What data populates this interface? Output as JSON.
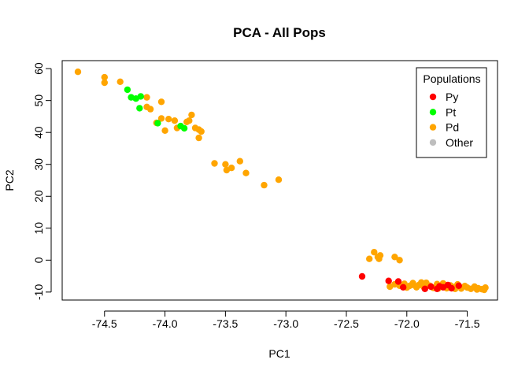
{
  "chart_data": {
    "type": "scatter",
    "title": "PCA - All Pops",
    "xlabel": "PC1",
    "ylabel": "PC2",
    "xlim": [
      -74.85,
      -71.25
    ],
    "ylim": [
      -12.5,
      62.5
    ],
    "xticks": [
      -74.5,
      -74.0,
      -73.5,
      -73.0,
      -72.5,
      -72.0,
      -71.5
    ],
    "xtick_labels": [
      "-74.5",
      "-74.0",
      "-73.5",
      "-73.0",
      "-72.5",
      "-72.0",
      "-71.5"
    ],
    "yticks": [
      -10,
      0,
      10,
      20,
      30,
      40,
      50,
      60
    ],
    "ytick_labels": [
      "-10",
      "0",
      "10",
      "20",
      "30",
      "40",
      "50",
      "60"
    ],
    "grid": false,
    "legend": {
      "title": "Populations",
      "placement": "top-right",
      "entries": [
        {
          "label": "Py",
          "color": "#FF0000"
        },
        {
          "label": "Pt",
          "color": "#00FF00"
        },
        {
          "label": "Pd",
          "color": "#FFA500"
        },
        {
          "label": "Other",
          "color": "#BEBEBE"
        }
      ]
    },
    "series": [
      {
        "name": "Pd",
        "color": "#FFA500",
        "points": [
          [
            -74.72,
            59.0
          ],
          [
            -74.5,
            57.3
          ],
          [
            -74.5,
            55.6
          ],
          [
            -74.37,
            55.9
          ],
          [
            -74.15,
            51.0
          ],
          [
            -74.15,
            48.0
          ],
          [
            -74.12,
            47.3
          ],
          [
            -74.03,
            49.6
          ],
          [
            -74.07,
            43.0
          ],
          [
            -74.03,
            44.4
          ],
          [
            -74.0,
            40.6
          ],
          [
            -73.97,
            44.2
          ],
          [
            -73.92,
            43.7
          ],
          [
            -73.9,
            41.4
          ],
          [
            -73.82,
            43.3
          ],
          [
            -73.8,
            43.7
          ],
          [
            -73.78,
            45.5
          ],
          [
            -73.75,
            41.4
          ],
          [
            -73.72,
            40.9
          ],
          [
            -73.7,
            40.3
          ],
          [
            -73.72,
            38.3
          ],
          [
            -73.59,
            30.3
          ],
          [
            -73.5,
            30.0
          ],
          [
            -73.49,
            28.2
          ],
          [
            -73.45,
            28.9
          ],
          [
            -73.38,
            31.0
          ],
          [
            -73.33,
            27.3
          ],
          [
            -73.18,
            23.5
          ],
          [
            -73.06,
            25.2
          ],
          [
            -72.27,
            2.5
          ],
          [
            -72.24,
            1.0
          ],
          [
            -72.22,
            1.5
          ],
          [
            -72.31,
            0.4
          ],
          [
            -72.23,
            0.4
          ],
          [
            -72.1,
            1.0
          ],
          [
            -72.06,
            0.0
          ],
          [
            -72.14,
            -8.3
          ],
          [
            -72.1,
            -7.6
          ],
          [
            -72.06,
            -8.0
          ],
          [
            -72.02,
            -7.4
          ],
          [
            -71.98,
            -8.1
          ],
          [
            -71.95,
            -7.2
          ],
          [
            -71.92,
            -8.5
          ],
          [
            -71.9,
            -7.8
          ],
          [
            -71.86,
            -8.4
          ],
          [
            -71.84,
            -7.1
          ],
          [
            -71.81,
            -8.0
          ],
          [
            -71.78,
            -8.7
          ],
          [
            -71.75,
            -7.5
          ],
          [
            -71.72,
            -8.2
          ],
          [
            -71.7,
            -7.3
          ],
          [
            -71.67,
            -8.8
          ],
          [
            -71.64,
            -7.9
          ],
          [
            -71.61,
            -8.4
          ],
          [
            -71.58,
            -7.6
          ],
          [
            -71.55,
            -8.9
          ],
          [
            -71.52,
            -8.1
          ],
          [
            -71.5,
            -8.6
          ],
          [
            -71.47,
            -9.0
          ],
          [
            -71.44,
            -8.3
          ],
          [
            -71.41,
            -8.8
          ],
          [
            -71.38,
            -9.1
          ],
          [
            -71.35,
            -8.6
          ],
          [
            -71.36,
            -9.3
          ],
          [
            -71.42,
            -9.2
          ],
          [
            -71.6,
            -9.0
          ],
          [
            -71.88,
            -7.0
          ],
          [
            -72.0,
            -8.6
          ],
          [
            -71.96,
            -7.8
          ],
          [
            -71.74,
            -8.9
          ],
          [
            -71.69,
            -8.4
          ]
        ]
      },
      {
        "name": "Pt",
        "color": "#00FF00",
        "points": [
          [
            -74.31,
            53.4
          ],
          [
            -74.28,
            51.0
          ],
          [
            -74.24,
            50.6
          ],
          [
            -74.2,
            51.3
          ],
          [
            -74.21,
            47.6
          ],
          [
            -74.06,
            42.9
          ],
          [
            -73.87,
            42.0
          ],
          [
            -73.84,
            41.3
          ]
        ]
      },
      {
        "name": "Py",
        "color": "#FF0000",
        "points": [
          [
            -72.37,
            -5.1
          ],
          [
            -72.15,
            -6.5
          ],
          [
            -72.07,
            -6.7
          ],
          [
            -72.03,
            -8.5
          ],
          [
            -71.85,
            -9.0
          ],
          [
            -71.8,
            -8.3
          ],
          [
            -71.75,
            -9.0
          ],
          [
            -71.7,
            -8.5
          ],
          [
            -71.66,
            -7.8
          ],
          [
            -71.63,
            -8.8
          ],
          [
            -71.57,
            -8.0
          ],
          [
            -71.73,
            -8.2
          ]
        ]
      }
    ]
  }
}
